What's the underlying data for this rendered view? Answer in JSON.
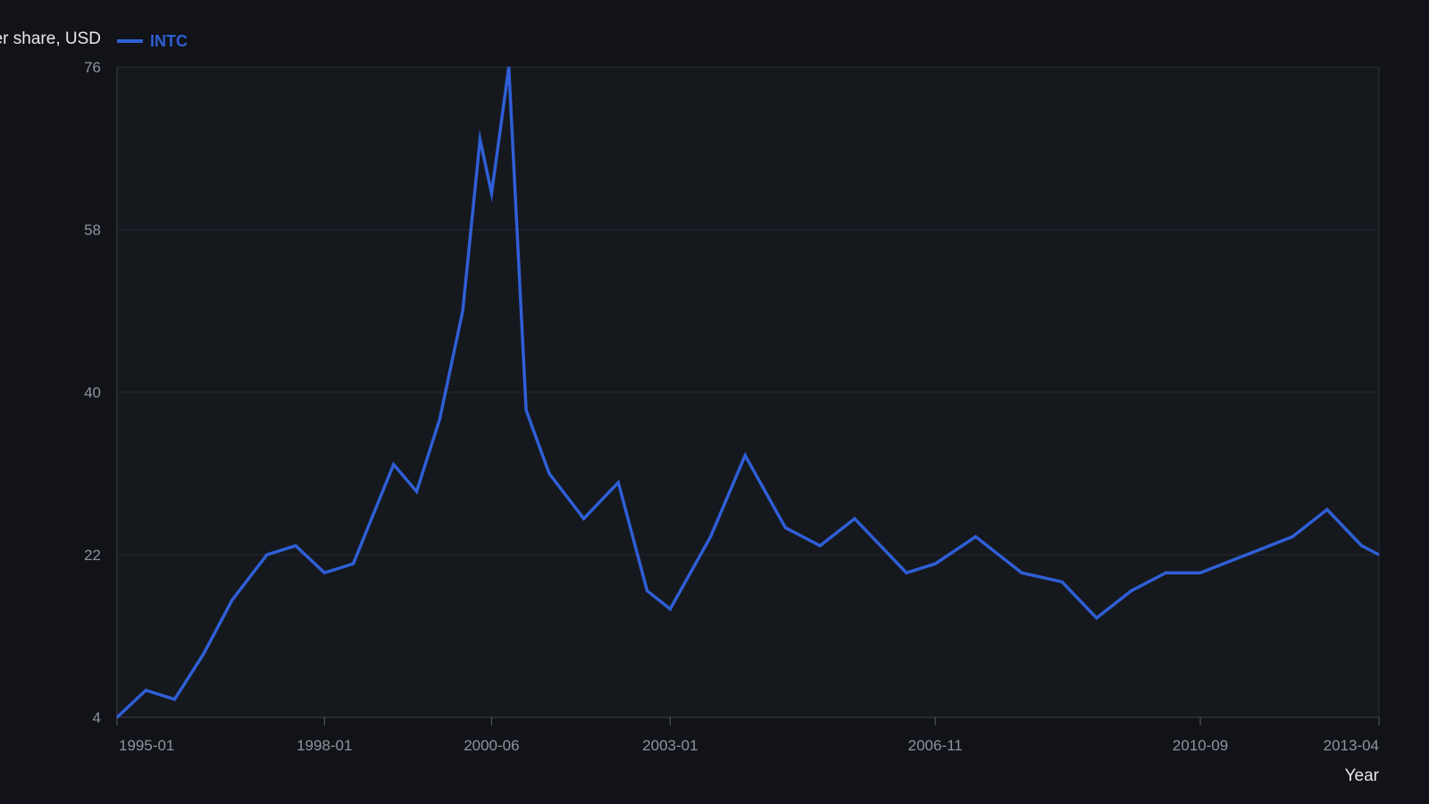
{
  "chart_data": {
    "type": "line",
    "title": "",
    "xlabel": "Year",
    "ylabel": "Price per share, USD",
    "ylim": [
      4,
      76
    ],
    "yticks": [
      "4",
      "22",
      "40",
      "58",
      "76"
    ],
    "xticks": [
      "1995-01",
      "1998-01",
      "2000-06",
      "2003-01",
      "2006-11",
      "2010-09",
      "2013-04"
    ],
    "grid": true,
    "legend_position": "top-left",
    "series": [
      {
        "name": "INTC",
        "color": "#2f5fd6",
        "x": [
          "1995-01",
          "1995-06",
          "1995-11",
          "1996-04",
          "1996-09",
          "1997-03",
          "1997-08",
          "1998-01",
          "1998-06",
          "1999-01",
          "1999-05",
          "1999-09",
          "2000-01",
          "2000-04",
          "2000-06",
          "2000-09",
          "2000-12",
          "2001-04",
          "2001-10",
          "2002-04",
          "2002-09",
          "2003-01",
          "2003-08",
          "2004-02",
          "2004-09",
          "2005-03",
          "2005-09",
          "2006-06",
          "2006-11",
          "2007-06",
          "2008-02",
          "2008-09",
          "2009-03",
          "2009-09",
          "2010-03",
          "2010-09",
          "2011-05",
          "2012-01",
          "2012-07",
          "2013-01",
          "2013-04"
        ],
        "y": [
          4,
          7,
          6,
          11,
          17,
          22,
          23,
          20,
          21,
          32,
          29,
          37,
          49,
          68,
          62,
          76,
          38,
          31,
          26,
          30,
          18,
          16,
          24,
          33,
          25,
          23,
          26,
          20,
          21,
          24,
          20,
          19,
          15,
          18,
          20,
          20,
          22,
          24,
          27,
          23,
          22
        ]
      }
    ]
  }
}
